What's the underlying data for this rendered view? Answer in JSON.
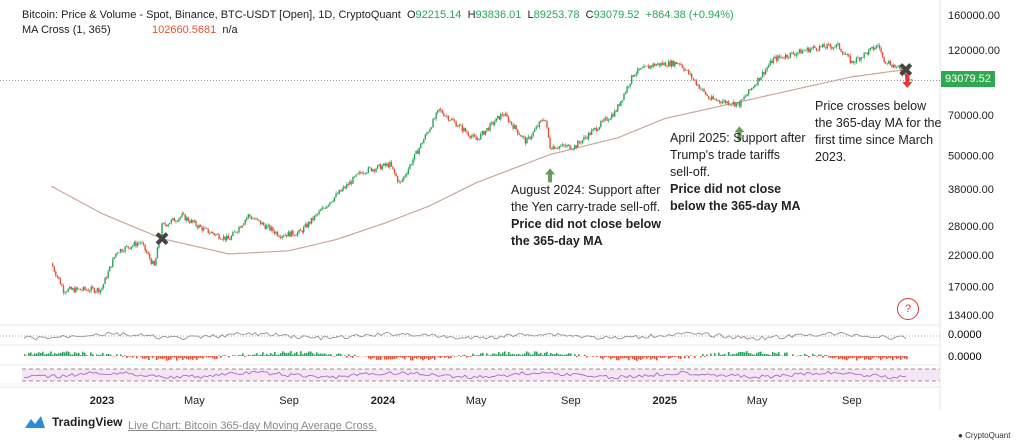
{
  "header": {
    "title": "Bitcoin: Price & Volume - Spot, Binance, BTC-USDT [Open], 1D, CryptoQuant",
    "open_label": "O",
    "open": "92215.14",
    "high_label": "H",
    "high": "93836.01",
    "low_label": "L",
    "low": "89253.78",
    "close_label": "C",
    "close": "93079.52",
    "change": "+864.38 (+0.94%)",
    "indicator": "MA Cross (1, 365)",
    "indicator_value": "102660.5681",
    "indicator_na": "n/a"
  },
  "colors": {
    "up": "#26a65b",
    "down": "#e0533a",
    "ma": "#c9a79a",
    "price_tag": "#2fa84f",
    "arrow_up": "#6b9a5e",
    "arrow_down": "#e03a3a"
  },
  "chart_data": {
    "type": "line",
    "y_scale": "log",
    "ylim": [
      13400,
      160000
    ],
    "y_ticks": [
      "160000.00",
      "120000.00",
      "70000.00",
      "50000.00",
      "38000.00",
      "28000.00",
      "22000.00",
      "17000.00",
      "13400.00"
    ],
    "y_tick_values": [
      160000,
      120000,
      70000,
      50000,
      38000,
      28000,
      22000,
      17000,
      13400
    ],
    "x_ticks": [
      {
        "label": "2023",
        "date": "2023-01-01",
        "bold": true
      },
      {
        "label": "May",
        "date": "2023-05-01"
      },
      {
        "label": "Sep",
        "date": "2023-09-01"
      },
      {
        "label": "2024",
        "date": "2024-01-01",
        "bold": true
      },
      {
        "label": "May",
        "date": "2024-05-01"
      },
      {
        "label": "Sep",
        "date": "2024-09-01"
      },
      {
        "label": "2025",
        "date": "2025-01-01",
        "bold": true
      },
      {
        "label": "May",
        "date": "2025-05-01"
      },
      {
        "label": "Sep",
        "date": "2025-09-01"
      }
    ],
    "last_price_label": "93079.52",
    "series": [
      {
        "kind": "candles",
        "points": [
          [
            "2022-10-27",
            20500
          ],
          [
            "2022-11-08",
            17500
          ],
          [
            "2022-11-12",
            16500
          ],
          [
            "2022-12-31",
            16550
          ],
          [
            "2023-01-20",
            22700
          ],
          [
            "2023-02-20",
            24500
          ],
          [
            "2023-03-10",
            20000
          ],
          [
            "2023-03-20",
            28000
          ],
          [
            "2023-04-15",
            30400
          ],
          [
            "2023-05-15",
            27000
          ],
          [
            "2023-06-15",
            25000
          ],
          [
            "2023-07-10",
            30500
          ],
          [
            "2023-08-20",
            26000
          ],
          [
            "2023-09-15",
            26500
          ],
          [
            "2023-10-25",
            34500
          ],
          [
            "2023-12-05",
            44000
          ],
          [
            "2024-01-10",
            46500
          ],
          [
            "2024-01-23",
            39500
          ],
          [
            "2024-03-14",
            73000
          ],
          [
            "2024-05-01",
            57000
          ],
          [
            "2024-06-05",
            71000
          ],
          [
            "2024-07-05",
            56000
          ],
          [
            "2024-07-29",
            69000
          ],
          [
            "2024-08-05",
            54000
          ],
          [
            "2024-09-06",
            54000
          ],
          [
            "2024-10-29",
            72000
          ],
          [
            "2024-11-22",
            99000
          ],
          [
            "2024-12-17",
            106000
          ],
          [
            "2025-01-20",
            108000
          ],
          [
            "2025-02-28",
            80000
          ],
          [
            "2025-04-08",
            76500
          ],
          [
            "2025-05-22",
            111000
          ],
          [
            "2025-07-14",
            122000
          ],
          [
            "2025-08-14",
            124000
          ],
          [
            "2025-09-01",
            108000
          ],
          [
            "2025-10-06",
            125000
          ],
          [
            "2025-10-11",
            112000
          ],
          [
            "2025-11-04",
            101000
          ],
          [
            "2025-11-18",
            93079.52
          ]
        ]
      },
      {
        "name": "MA Cross (1, 365)",
        "kind": "line",
        "points": [
          [
            "2022-10-27",
            38900
          ],
          [
            "2023-01-01",
            31000
          ],
          [
            "2023-03-20",
            25200
          ],
          [
            "2023-06-15",
            22200
          ],
          [
            "2023-09-01",
            22800
          ],
          [
            "2023-11-01",
            25000
          ],
          [
            "2024-01-01",
            28500
          ],
          [
            "2024-03-01",
            33000
          ],
          [
            "2024-05-01",
            40000
          ],
          [
            "2024-08-05",
            50500
          ],
          [
            "2024-11-01",
            58000
          ],
          [
            "2025-01-01",
            68000
          ],
          [
            "2025-04-08",
            78000
          ],
          [
            "2025-07-01",
            88000
          ],
          [
            "2025-09-01",
            96000
          ],
          [
            "2025-11-18",
            102660.5681
          ]
        ]
      }
    ],
    "annotations": [
      {
        "lines": [
          "August 2024: Support after",
          "the Yen carry-trade sell-off."
        ],
        "bold": [
          "Price did not close below",
          "the 365-day MA"
        ],
        "arrow": "up",
        "date": "2024-08-05"
      },
      {
        "lines": [
          "April 2025: Support after",
          "Trump's trade tariffs",
          "sell-off."
        ],
        "bold": [
          "Price did not close",
          "below the 365-day MA"
        ],
        "arrow": "up",
        "date": "2025-04-08"
      },
      {
        "lines": [
          "Price crosses below",
          "the 365-day MA for the",
          "first time since March",
          "2023."
        ],
        "bold": [],
        "arrow": "down",
        "date": "2025-11-12"
      }
    ],
    "cross_markers": [
      "2023-03-20",
      "2025-11-10"
    ],
    "sub_panels": [
      {
        "value_label": "0.0000"
      },
      {
        "value_label": "0.0000"
      },
      {
        "value_label": ""
      }
    ]
  },
  "footer": {
    "brand": "TradingView",
    "link": "Live Chart: Bitcoin 365-day Moving Average Cross.",
    "source": "CryptoQuant"
  }
}
